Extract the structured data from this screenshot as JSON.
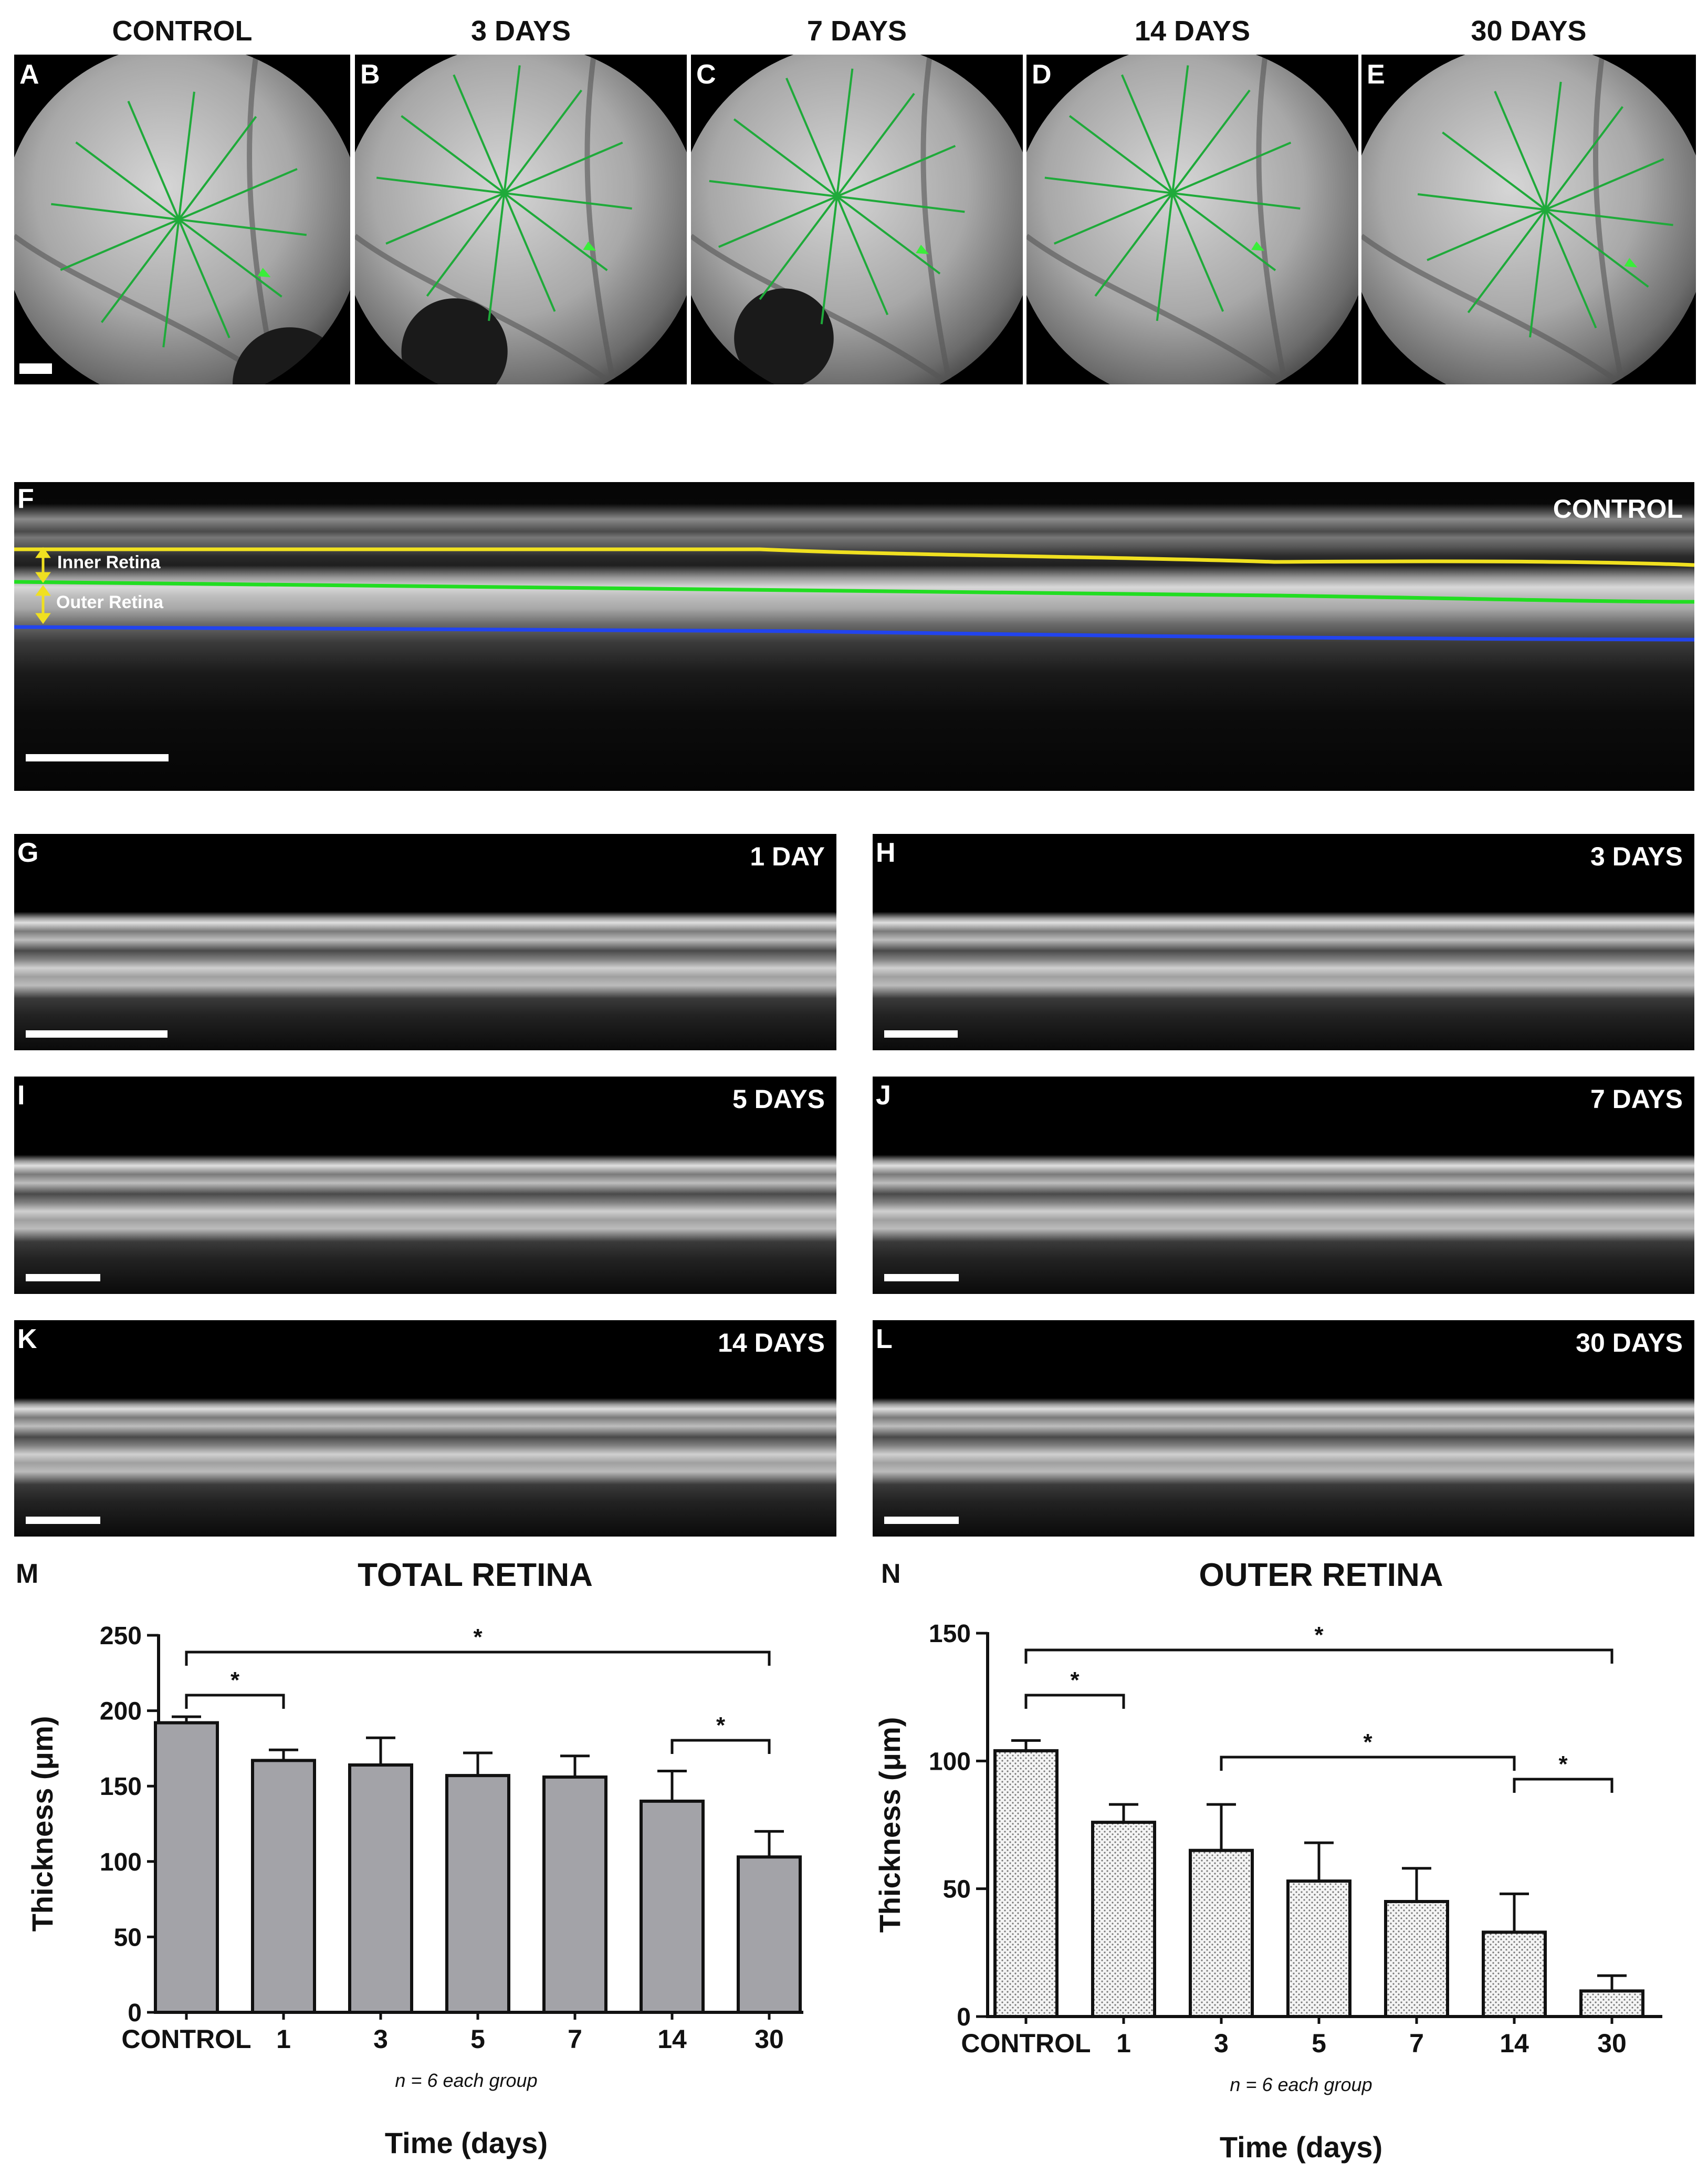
{
  "fundus_panels": [
    {
      "letter": "A",
      "title": "CONTROL"
    },
    {
      "letter": "B",
      "title": "3 DAYS"
    },
    {
      "letter": "C",
      "title": "7 DAYS"
    },
    {
      "letter": "D",
      "title": "14 DAYS"
    },
    {
      "letter": "E",
      "title": "30 DAYS"
    }
  ],
  "control_oct": {
    "letter": "F",
    "title": "CONTROL",
    "inner_label": "Inner Retina",
    "outer_label": "Outer Retina",
    "colors": {
      "inner_boundary": "#f0e020",
      "middle_boundary": "#22dd22",
      "outer_boundary": "#2244ee"
    }
  },
  "oct_panels": [
    {
      "letter": "G",
      "title": "1 DAY"
    },
    {
      "letter": "H",
      "title": "3 DAYS"
    },
    {
      "letter": "I",
      "title": "5 DAYS"
    },
    {
      "letter": "J",
      "title": "7 DAYS"
    },
    {
      "letter": "K",
      "title": "14 DAYS"
    },
    {
      "letter": "L",
      "title": "30 DAYS"
    }
  ],
  "chart_data": [
    {
      "panel": "M",
      "type": "bar",
      "title": "TOTAL RETINA",
      "xlabel": "Time (days)",
      "ylabel": "Thickness (μm)",
      "note": "n = 6 each group",
      "categories": [
        "CONTROL",
        "1",
        "3",
        "5",
        "7",
        "14",
        "30"
      ],
      "values": [
        192,
        167,
        164,
        157,
        156,
        140,
        103
      ],
      "errors": [
        4,
        7,
        18,
        15,
        14,
        20,
        17
      ],
      "ylim": [
        0,
        250
      ],
      "yticks": [
        0,
        50,
        100,
        150,
        200,
        250
      ],
      "fill": "#a3a3a8",
      "significance": [
        {
          "from": 0,
          "to": 1,
          "label": "*"
        },
        {
          "from": 0,
          "to": 6,
          "label": "*"
        },
        {
          "from": 5,
          "to": 6,
          "label": "*"
        }
      ]
    },
    {
      "panel": "N",
      "type": "bar",
      "title": "OUTER RETINA",
      "xlabel": "Time (days)",
      "ylabel": "Thickness (μm)",
      "note": "n = 6 each group",
      "categories": [
        "CONTROL",
        "1",
        "3",
        "5",
        "7",
        "14",
        "30"
      ],
      "values": [
        104,
        76,
        65,
        53,
        45,
        33,
        10
      ],
      "errors": [
        4,
        7,
        18,
        15,
        13,
        15,
        6
      ],
      "ylim": [
        0,
        150
      ],
      "yticks": [
        0,
        50,
        100,
        150
      ],
      "fill": "dotted",
      "significance": [
        {
          "from": 0,
          "to": 1,
          "label": "*"
        },
        {
          "from": 0,
          "to": 6,
          "label": "*"
        },
        {
          "from": 2,
          "to": 5,
          "label": "*"
        },
        {
          "from": 5,
          "to": 6,
          "label": "*"
        }
      ]
    }
  ]
}
